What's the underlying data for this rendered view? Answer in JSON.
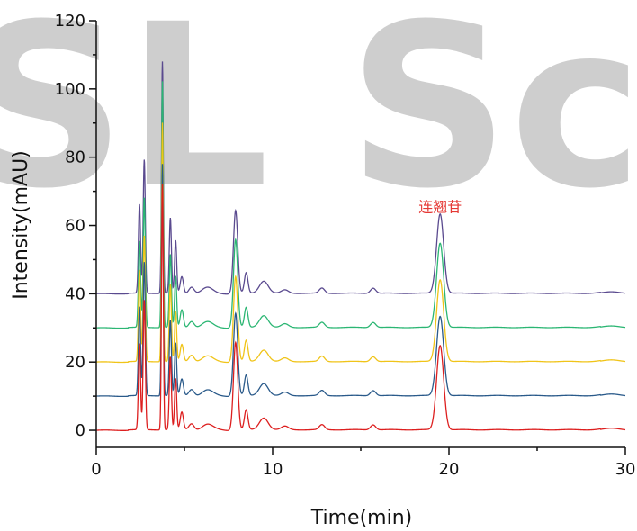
{
  "watermark": "SL Science",
  "chart_data": {
    "type": "line",
    "title": "",
    "xlabel": "Time(min)",
    "ylabel": "Intensity(mAU)",
    "xlim": [
      0,
      30
    ],
    "ylim": [
      -5,
      120
    ],
    "xticks": [
      0,
      10,
      20,
      30
    ],
    "yticks": [
      0,
      20,
      40,
      60,
      80,
      100,
      120
    ],
    "grid": false,
    "legend": "none",
    "annotations": [
      {
        "text": "连翘苷",
        "x": 19.5,
        "y": 64,
        "color": "#e53935"
      }
    ],
    "peaks": [
      {
        "rt": 2.45,
        "height": 26,
        "width": 0.06
      },
      {
        "rt": 2.72,
        "height": 38,
        "width": 0.06
      },
      {
        "rt": 3.75,
        "height": 70,
        "width": 0.05
      },
      {
        "rt": 4.2,
        "height": 22,
        "width": 0.06
      },
      {
        "rt": 4.5,
        "height": 15,
        "width": 0.06
      },
      {
        "rt": 4.85,
        "height": 5,
        "width": 0.09
      },
      {
        "rt": 5.4,
        "height": 2,
        "width": 0.15
      },
      {
        "rt": 6.3,
        "height": 1.5,
        "width": 0.3
      },
      {
        "rt": 7.9,
        "height": 25,
        "width": 0.12
      },
      {
        "rt": 8.5,
        "height": 6,
        "width": 0.1
      },
      {
        "rt": 9.5,
        "height": 3.5,
        "width": 0.25
      },
      {
        "rt": 10.7,
        "height": 1,
        "width": 0.2
      },
      {
        "rt": 12.8,
        "height": 1.5,
        "width": 0.15
      },
      {
        "rt": 15.7,
        "height": 1.5,
        "width": 0.15
      },
      {
        "rt": 19.5,
        "height": 24,
        "width": 0.2
      },
      {
        "rt": 29.3,
        "height": 0.6,
        "width": 0.5
      }
    ],
    "series": [
      {
        "offset": 0,
        "color": "#dd1f1f"
      },
      {
        "offset": 10,
        "color": "#2a5a8a"
      },
      {
        "offset": 20,
        "color": "#f0c419"
      },
      {
        "offset": 30,
        "color": "#2bb673"
      },
      {
        "offset": 40,
        "color": "#5a4a8f"
      }
    ]
  }
}
